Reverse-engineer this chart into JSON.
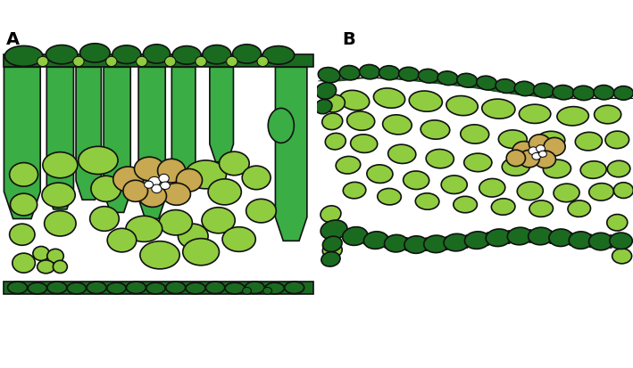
{
  "fig_width": 7.09,
  "fig_height": 4.13,
  "dpi": 100,
  "bg_color": "#ffffff",
  "dark_green": "#1a6b20",
  "mid_green": "#3aad45",
  "light_green": "#90cc40",
  "tan": "#c8a850",
  "outline_color": "#111111",
  "label_A": "A",
  "label_B": "B",
  "label_fontsize": 14,
  "label_fontweight": "bold"
}
